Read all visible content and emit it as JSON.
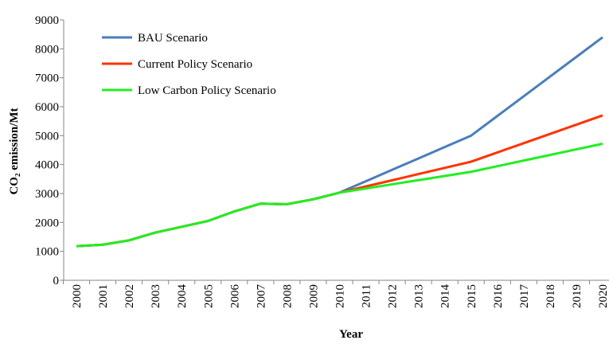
{
  "chart_data": {
    "type": "line",
    "x_label": "Year",
    "y_label": "CO₂ emission/Mt",
    "categories": [
      "2000",
      "2001",
      "2002",
      "2003",
      "2004",
      "2005",
      "2006",
      "2007",
      "2008",
      "2009",
      "2010",
      "2011",
      "2012",
      "2013",
      "2014",
      "2015",
      "2016",
      "2017",
      "2018",
      "2019",
      "2020"
    ],
    "series": [
      {
        "name": "BAU Scenario",
        "color": "#4a7ebb",
        "values": [
          1180,
          1230,
          1380,
          1650,
          1850,
          2050,
          2380,
          2650,
          2630,
          2800,
          3030,
          3424,
          3818,
          4212,
          4606,
          5000,
          5680,
          6360,
          7040,
          7720,
          8400
        ]
      },
      {
        "name": "Current Policy Scenario",
        "color": "#ff3300",
        "values": [
          1180,
          1230,
          1380,
          1650,
          1850,
          2050,
          2380,
          2650,
          2630,
          2800,
          3030,
          3244,
          3458,
          3672,
          3886,
          4100,
          4420,
          4740,
          5060,
          5380,
          5700
        ]
      },
      {
        "name": "Low Carbon Policy Scenario",
        "color": "#22ee22",
        "values": [
          1180,
          1230,
          1380,
          1650,
          1850,
          2050,
          2380,
          2650,
          2630,
          2800,
          3030,
          3174,
          3318,
          3462,
          3606,
          3750,
          3944,
          4138,
          4332,
          4526,
          4720
        ]
      }
    ],
    "ylim": [
      0,
      9000
    ],
    "yticks": [
      0,
      1000,
      2000,
      3000,
      4000,
      5000,
      6000,
      7000,
      8000,
      9000
    ],
    "grid": false,
    "legend": "upper-left"
  }
}
